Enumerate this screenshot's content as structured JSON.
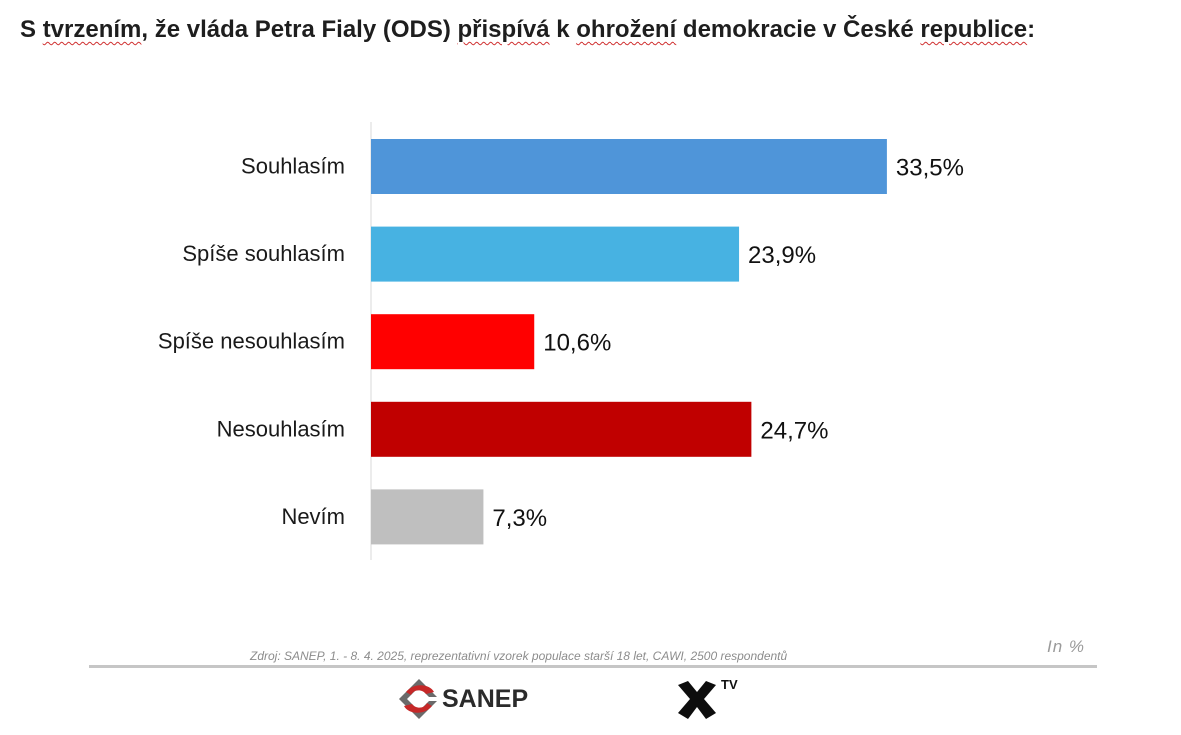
{
  "title_parts": {
    "p1": "S ",
    "p2": "tvrzením",
    "p3": ", že vláda Petra Fialy (ODS) ",
    "p4": "přispívá",
    "p5": " k ",
    "p6": "ohrožení",
    "p7": " demokracie v České ",
    "p8": "republice",
    "p9": ":"
  },
  "chart_data": {
    "type": "bar",
    "orientation": "horizontal",
    "title": "S tvrzením, že vláda Petra Fialy (ODS) přispívá k ohrožení demokracie v České republice:",
    "categories": [
      "Souhlasím",
      "Spíše souhlasím",
      "Spíše nesouhlasím",
      "Nesouhlasím",
      "Nevím"
    ],
    "values": [
      33.5,
      23.9,
      10.6,
      24.7,
      7.3
    ],
    "value_labels": [
      "33,5%",
      "23,9%",
      "10,6%",
      "24,7%",
      "7,3%"
    ],
    "colors": [
      "#4f95d9",
      "#47b2e2",
      "#ff0000",
      "#c00000",
      "#bfbfbf"
    ],
    "unit": "In %",
    "xlim": [
      0,
      40
    ],
    "grid": false,
    "legend": "none"
  },
  "footer": {
    "source": "Zdroj: SANEP, 1. - 8. 4. 2025, reprezentativní vzorek populace starší 18 let, CAWI, 2500 respondentů",
    "unit": "In %"
  },
  "logos": {
    "sanep": "SANEP",
    "xtv": "TV",
    "sanep_icon": "sanep-logo-icon",
    "xtv_icon": "x-cross-icon",
    "sanep_color": "#c62828"
  }
}
